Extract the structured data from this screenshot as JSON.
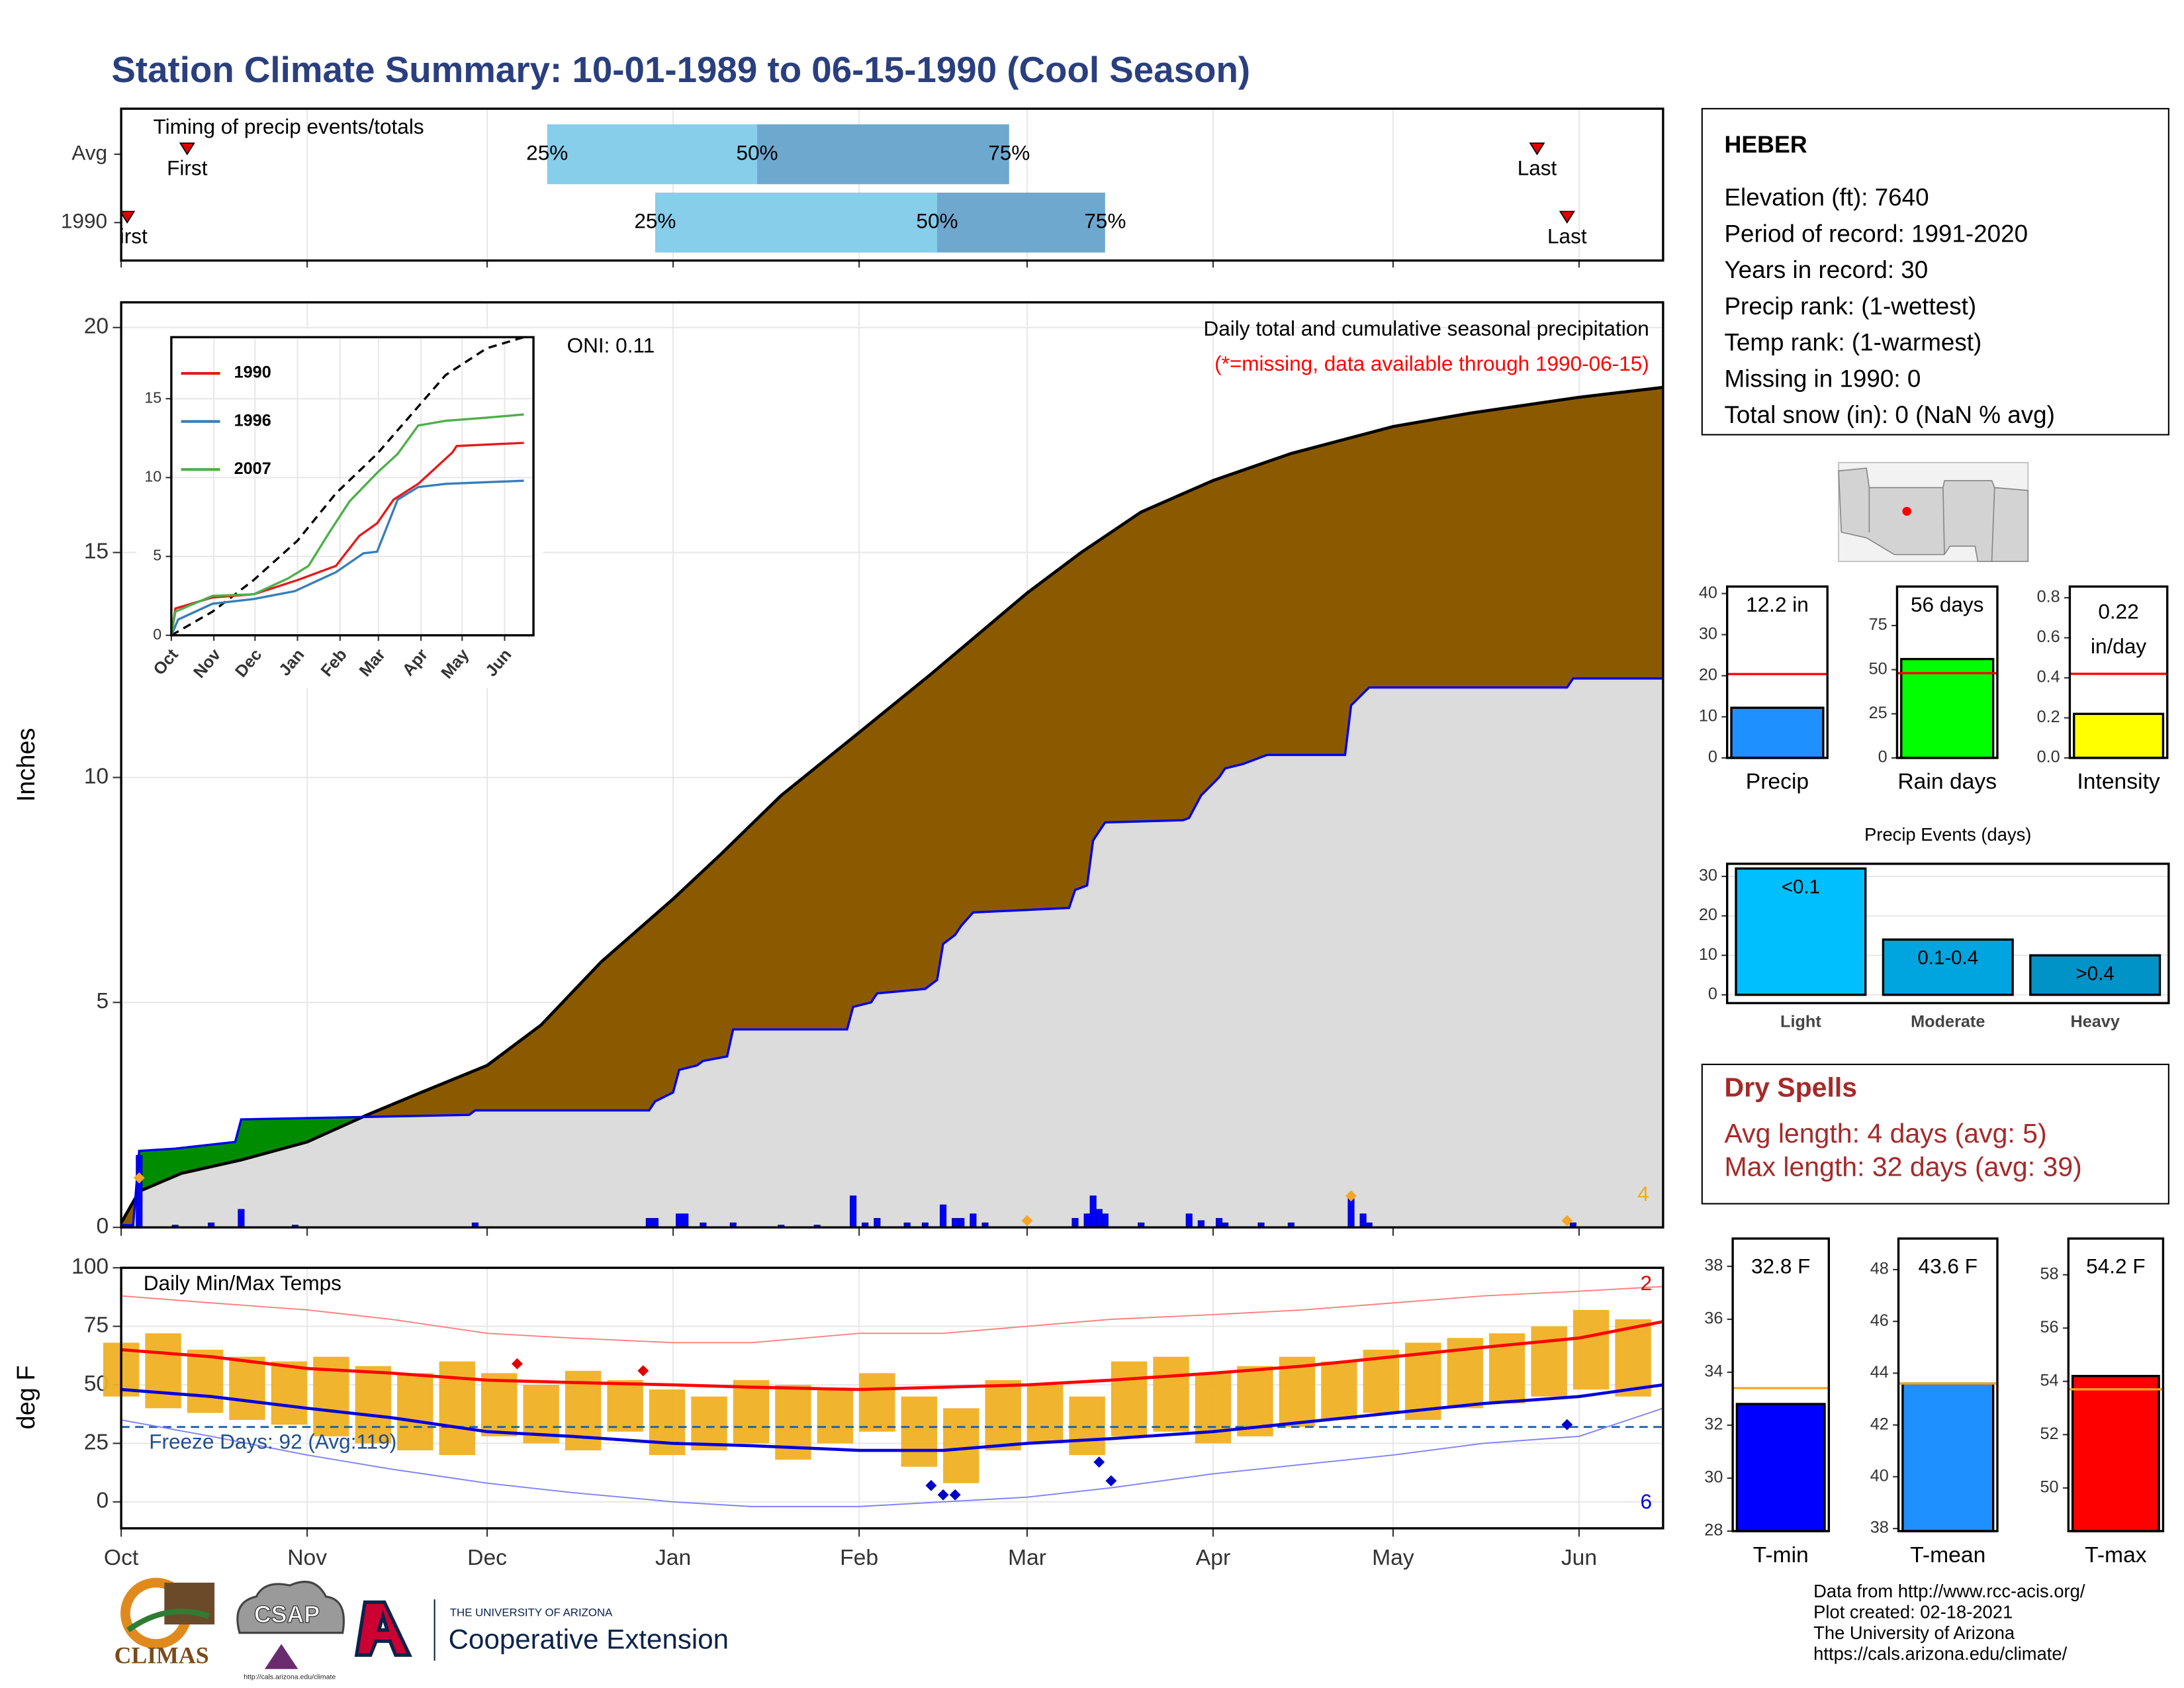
{
  "title": "Station Climate Summary: 10-01-1989 to 06-15-1990 (Cool Season)",
  "chart_data": [
    {
      "type": "timing",
      "title": "Timing of precip events/totals",
      "categories": [
        "Avg",
        "1990"
      ],
      "xlim": [
        0,
        257
      ],
      "xticks": [
        0,
        31,
        61,
        92,
        123,
        151,
        182,
        212,
        243
      ],
      "grid": true,
      "first": [
        11,
        1
      ],
      "last": [
        236,
        241
      ],
      "q25": [
        71,
        89
      ],
      "q50": [
        106,
        136
      ],
      "q75": [
        148,
        164
      ],
      "first_label": "First",
      "last_label": "Last",
      "q_labels": [
        "25%",
        "50%",
        "75%"
      ],
      "colors": {
        "low": "#87ceeb",
        "high": "#6fa8cf",
        "marker": "#e00000"
      }
    },
    {
      "type": "cumulative",
      "title": "Daily total and cumulative seasonal precipitation",
      "subtitle": "(*=missing, data available through 1990-06-15)",
      "annotation": "ONI: 0.11",
      "ylabel": "Inches",
      "xlim": [
        0,
        257
      ],
      "ylim": [
        0,
        20.56
      ],
      "yticks": [
        0,
        5,
        10,
        15,
        20
      ],
      "xticks": [
        0,
        31,
        61,
        92,
        123,
        151,
        182,
        212,
        243
      ],
      "grid": true,
      "average": {
        "x": [
          0,
          3,
          10,
          20,
          31,
          41,
          50,
          61,
          70,
          80,
          92,
          100,
          110,
          123,
          135,
          151,
          160,
          170,
          182,
          195,
          212,
          225,
          243,
          257
        ],
        "values": [
          0.1,
          0.8,
          1.2,
          1.5,
          1.9,
          2.5,
          3.0,
          3.6,
          4.5,
          5.9,
          7.3,
          8.3,
          9.6,
          11.0,
          12.3,
          14.1,
          15.0,
          15.9,
          16.6,
          17.2,
          17.8,
          18.1,
          18.45,
          18.67
        ],
        "color": "#000000"
      },
      "observed": {
        "x": [
          0,
          2,
          3,
          9,
          19,
          20,
          58,
          59,
          88,
          89,
          92,
          93,
          96,
          97,
          101,
          102,
          121,
          122,
          125,
          126,
          134,
          136,
          137,
          139,
          140,
          142,
          150,
          158,
          159,
          161,
          162,
          164,
          177,
          178,
          180,
          183,
          184,
          187,
          191,
          204,
          205,
          208,
          241,
          242,
          257
        ],
        "values": [
          0.05,
          0.05,
          1.7,
          1.75,
          1.9,
          2.4,
          2.5,
          2.6,
          2.6,
          2.8,
          3.0,
          3.5,
          3.6,
          3.7,
          3.8,
          4.4,
          4.4,
          4.9,
          5.0,
          5.2,
          5.3,
          5.5,
          6.3,
          6.5,
          6.7,
          7.0,
          7.05,
          7.1,
          7.5,
          7.6,
          8.6,
          9.0,
          9.05,
          9.1,
          9.6,
          10.0,
          10.2,
          10.3,
          10.5,
          10.5,
          11.6,
          12.0,
          12.0,
          12.2,
          12.2
        ],
        "color": "#0000ee"
      },
      "colors": {
        "deficit": "#8b5a00",
        "surplus": "#008c00",
        "below": "#dcdcdc"
      },
      "daily": {
        "x": [
          3,
          9,
          15,
          20,
          29,
          59,
          88,
          89,
          93,
          94,
          97,
          102,
          110,
          116,
          122,
          124,
          126,
          131,
          134,
          137,
          139,
          140,
          142,
          144,
          159,
          161,
          162,
          163,
          164,
          170,
          178,
          180,
          183,
          184,
          190,
          195,
          205,
          207,
          208,
          242
        ],
        "values": [
          1.6,
          0.05,
          0.1,
          0.4,
          0.05,
          0.1,
          0.2,
          0.2,
          0.3,
          0.3,
          0.1,
          0.1,
          0.05,
          0.05,
          0.7,
          0.1,
          0.2,
          0.1,
          0.1,
          0.5,
          0.2,
          0.2,
          0.3,
          0.1,
          0.2,
          0.3,
          0.7,
          0.4,
          0.3,
          0.1,
          0.3,
          0.15,
          0.2,
          0.1,
          0.1,
          0.1,
          0.7,
          0.3,
          0.1,
          0.1
        ],
        "color": "#0000ff"
      },
      "snow": {
        "x": [
          3,
          151,
          205,
          241
        ],
        "values": [
          1.1,
          0.15,
          0.7,
          0.15
        ],
        "color": "#f5a623",
        "count_label": "4"
      }
    },
    {
      "type": "line",
      "xlim": [
        0,
        264
      ],
      "ylim": [
        0,
        18.9
      ],
      "yticks": [
        0,
        5,
        10,
        15
      ],
      "grid": true,
      "xticks": [
        {
          "value": 0,
          "label": "Oct"
        },
        {
          "value": 31,
          "label": "Nov"
        },
        {
          "value": 61,
          "label": "Dec"
        },
        {
          "value": 92,
          "label": "Jan"
        },
        {
          "value": 123,
          "label": "Feb"
        },
        {
          "value": 151,
          "label": "Mar"
        },
        {
          "value": 182,
          "label": "Apr"
        },
        {
          "value": 212,
          "label": "May"
        },
        {
          "value": 243,
          "label": "Jun"
        }
      ],
      "series": [
        {
          "x": [
            0,
            30,
            60,
            92,
            120,
            150,
            180,
            200,
            230,
            257
          ],
          "values": [
            0,
            1.5,
            3.5,
            6.0,
            9.0,
            11.5,
            14.5,
            16.5,
            18.2,
            18.9
          ],
          "color": "#000000",
          "dashed": true
        },
        {
          "name": "1990",
          "x": [
            0,
            3,
            30,
            60,
            92,
            120,
            137,
            150,
            162,
            180,
            205,
            208,
            257
          ],
          "values": [
            0,
            1.7,
            2.4,
            2.6,
            3.5,
            4.4,
            6.3,
            7.1,
            8.6,
            9.6,
            11.6,
            12.0,
            12.2
          ],
          "color": "#e41a1c"
        },
        {
          "name": "1996",
          "x": [
            0,
            5,
            30,
            60,
            90,
            120,
            140,
            150,
            165,
            180,
            200,
            257
          ],
          "values": [
            0,
            1.0,
            2.0,
            2.3,
            2.8,
            4.0,
            5.2,
            5.3,
            8.6,
            9.4,
            9.6,
            9.8
          ],
          "color": "#377eb8"
        },
        {
          "name": "2007",
          "x": [
            0,
            3,
            30,
            60,
            85,
            100,
            115,
            130,
            150,
            165,
            180,
            200,
            230,
            257
          ],
          "values": [
            0,
            1.5,
            2.5,
            2.6,
            3.6,
            4.4,
            6.5,
            8.5,
            10.3,
            11.5,
            13.3,
            13.6,
            13.8,
            14.0
          ],
          "color": "#4daf4a"
        }
      ]
    },
    {
      "type": "temperature",
      "title": "Daily Min/Max Temps",
      "ylabel": "deg F",
      "annotation": "Freeze Days: 92 (Avg:119)",
      "xlim": [
        0,
        257
      ],
      "ylim": [
        -11.3,
        100
      ],
      "yticks": [
        0,
        25,
        50,
        75,
        100
      ],
      "grid": true,
      "xticks": [
        {
          "value": 0,
          "label": "Oct"
        },
        {
          "value": 31,
          "label": "Nov"
        },
        {
          "value": 61,
          "label": "Dec"
        },
        {
          "value": 92,
          "label": "Jan"
        },
        {
          "value": 123,
          "label": "Feb"
        },
        {
          "value": 151,
          "label": "Mar"
        },
        {
          "value": 182,
          "label": "Apr"
        },
        {
          "value": 212,
          "label": "May"
        },
        {
          "value": 243,
          "label": "Jun"
        }
      ],
      "range": {
        "x": [
          0,
          7,
          14,
          21,
          28,
          35,
          42,
          49,
          56,
          63,
          70,
          77,
          84,
          91,
          98,
          105,
          112,
          119,
          126,
          133,
          140,
          147,
          154,
          161,
          168,
          175,
          182,
          189,
          196,
          203,
          210,
          217,
          224,
          231,
          238,
          245,
          252
        ],
        "low": [
          45,
          40,
          38,
          35,
          33,
          28,
          25,
          22,
          20,
          28,
          25,
          22,
          30,
          20,
          22,
          25,
          18,
          25,
          30,
          15,
          8,
          22,
          25,
          20,
          28,
          30,
          25,
          28,
          32,
          35,
          38,
          35,
          40,
          42,
          45,
          48,
          45
        ],
        "high": [
          68,
          72,
          65,
          62,
          60,
          62,
          58,
          55,
          60,
          55,
          50,
          56,
          52,
          48,
          45,
          52,
          50,
          48,
          55,
          45,
          40,
          52,
          50,
          45,
          60,
          62,
          55,
          58,
          62,
          60,
          65,
          68,
          70,
          72,
          75,
          82,
          78
        ],
        "color": "#f0b023"
      },
      "mean_max": {
        "x": [
          0,
          15,
          31,
          45,
          61,
          75,
          92,
          105,
          123,
          137,
          151,
          165,
          182,
          197,
          212,
          227,
          243,
          257
        ],
        "values": [
          65,
          62,
          57,
          55,
          52,
          51,
          50,
          49,
          48,
          49,
          50,
          52,
          55,
          58,
          62,
          66,
          70,
          77
        ],
        "color": "#ff0000"
      },
      "mean_min": {
        "x": [
          0,
          15,
          31,
          45,
          61,
          75,
          92,
          105,
          123,
          137,
          151,
          165,
          182,
          197,
          212,
          227,
          243,
          257
        ],
        "values": [
          48,
          45,
          40,
          36,
          30,
          28,
          25,
          24,
          22,
          22,
          25,
          27,
          30,
          34,
          38,
          42,
          45,
          50
        ],
        "color": "#0000dd"
      },
      "record_max": {
        "x": [
          0,
          15,
          31,
          45,
          61,
          75,
          92,
          105,
          123,
          137,
          151,
          165,
          182,
          197,
          212,
          227,
          243,
          257
        ],
        "values": [
          88,
          85,
          82,
          78,
          72,
          70,
          68,
          68,
          72,
          72,
          75,
          78,
          80,
          82,
          85,
          88,
          90,
          92
        ],
        "color": "#ff8080"
      },
      "record_min": {
        "x": [
          0,
          15,
          31,
          45,
          61,
          75,
          92,
          105,
          123,
          137,
          151,
          165,
          182,
          197,
          212,
          227,
          243,
          257
        ],
        "values": [
          35,
          28,
          20,
          14,
          8,
          4,
          0,
          -2,
          -2,
          0,
          2,
          6,
          12,
          16,
          20,
          25,
          28,
          40
        ],
        "color": "#8080ff"
      },
      "freeze": {
        "value": 32,
        "color": "#1f5fa8"
      },
      "record_high_days": {
        "x": [
          66,
          87
        ],
        "values": [
          59,
          56
        ],
        "color": "#e00000",
        "count_label": "2"
      },
      "record_low_days": {
        "x": [
          135,
          137,
          139,
          163,
          165,
          241
        ],
        "values": [
          7,
          3,
          3,
          17,
          9,
          33
        ],
        "color": "#0000cc",
        "count_label": "6"
      }
    },
    {
      "type": "bar",
      "categories": [
        "Precip"
      ],
      "values": [
        12.2
      ],
      "value_labels": [
        "12.2 in"
      ],
      "color": "#1e90ff",
      "average": 20.4,
      "average_color": "#ff0000",
      "ylim": [
        0,
        41.7
      ],
      "yticks": [
        0,
        10,
        20,
        30,
        40
      ]
    },
    {
      "type": "bar",
      "categories": [
        "Rain days"
      ],
      "values": [
        56
      ],
      "value_labels": [
        "56 days"
      ],
      "color": "#00ff00",
      "average": 48,
      "average_color": "#ff0000",
      "ylim": [
        0,
        97.1
      ],
      "yticks": [
        0,
        25,
        50,
        75
      ]
    },
    {
      "type": "bar",
      "categories": [
        "Intensity"
      ],
      "values": [
        0.22
      ],
      "value_labels": [
        "0.22"
      ],
      "unit": "in/day",
      "color": "#ffff00",
      "average": 0.42,
      "average_color": "#ff0000",
      "ylim": [
        0,
        0.856
      ],
      "yticks": [
        {
          "value": 0,
          "label": "0.0"
        },
        0.2,
        0.4,
        0.6,
        0.8
      ]
    },
    {
      "type": "bar",
      "title": "Precip Events (days)",
      "categories": [
        "Light",
        "Moderate",
        "Heavy"
      ],
      "values": [
        32,
        14,
        10
      ],
      "bar_labels": [
        "<0.1",
        "0.1-0.4",
        ">0.4"
      ],
      "colors": [
        "#00bfff",
        "#00a5e0",
        "#0093c8"
      ],
      "ylim": [
        -2.1,
        33.2
      ],
      "yticks": [
        0,
        10,
        20,
        30
      ],
      "grid": true
    },
    {
      "type": "bar",
      "categories": [
        "T-min"
      ],
      "values": [
        32.8
      ],
      "value_labels": [
        "32.8 F"
      ],
      "color": "#0000ff",
      "average": 33.4,
      "average_color": "#f5a623",
      "ylim": [
        28,
        39.05
      ],
      "yticks": [
        28,
        30,
        32,
        34,
        36,
        38
      ]
    },
    {
      "type": "bar",
      "categories": [
        "T-mean"
      ],
      "values": [
        43.6
      ],
      "value_labels": [
        "43.6 F"
      ],
      "color": "#1e90ff",
      "average": 43.6,
      "average_color": "#f5a623",
      "ylim": [
        37.9,
        49.2
      ],
      "yticks": [
        38,
        40,
        42,
        44,
        46,
        48
      ]
    },
    {
      "type": "bar",
      "categories": [
        "T-max"
      ],
      "values": [
        54.2
      ],
      "value_labels": [
        "54.2 F"
      ],
      "color": "#ff0000",
      "average": 53.7,
      "average_color": "#f5a623",
      "ylim": [
        48.38,
        59.36
      ],
      "yticks": [
        50,
        52,
        54,
        56,
        58
      ]
    }
  ],
  "station": {
    "name": "HEBER",
    "lines": [
      "Elevation (ft): 7640",
      "Period of record: 1991-2020",
      "Years in record: 30",
      "Precip rank:  (1-wettest)",
      "Temp rank:  (1-warmest)",
      "Missing in 1990: 0",
      "Total snow (in): 0 (NaN % avg)"
    ]
  },
  "dry_spells": {
    "title": "Dry Spells",
    "lines": [
      "Avg length: 4 days (avg: 5)",
      "Max length: 32 days (avg: 39)"
    ]
  },
  "credits": [
    "Data from http://www.rcc-acis.org/",
    "Plot created: 02-18-2021",
    "The University of Arizona",
    "https://cals.arizona.edu/climate/"
  ],
  "logos": {
    "climas": "CLIMAS",
    "csap": "CSAP",
    "csap_url": "http://cals.arizona.edu/climate",
    "ua": "THE UNIVERSITY OF ARIZONA",
    "extension": "Cooperative Extension"
  }
}
